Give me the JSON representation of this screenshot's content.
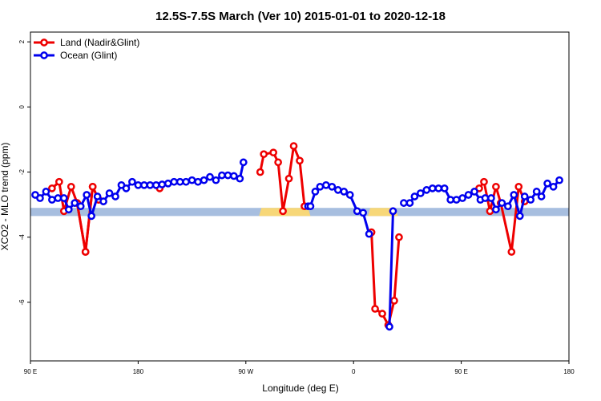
{
  "chart_data": {
    "type": "line",
    "title": "12.5S-7.5S March (Ver 10)   2015-01-01 to 2020-12-18",
    "xlabel": "Longitude (deg E)",
    "ylabel": "XCO2 - MLO trend (ppm)",
    "xlim": [
      90,
      540
    ],
    "ylim": [
      -7.8,
      2.3
    ],
    "x_ticks": [
      {
        "value": 90,
        "label": "90 E"
      },
      {
        "value": 180,
        "label": "180"
      },
      {
        "value": 270,
        "label": "90 W"
      },
      {
        "value": 360,
        "label": "0"
      },
      {
        "value": 450,
        "label": "90 E"
      },
      {
        "value": 540,
        "label": "180"
      }
    ],
    "y_ticks": [
      {
        "value": 2,
        "label": "2"
      },
      {
        "value": 0,
        "label": "0"
      },
      {
        "value": -2,
        "label": "-2"
      },
      {
        "value": -4,
        "label": "-4"
      },
      {
        "value": -6,
        "label": "-6"
      }
    ],
    "legend": {
      "position": "top-left",
      "entries": [
        {
          "label": "Land (Nadir&Glint)",
          "color": "#ee0000"
        },
        {
          "label": "Ocean (Glint)",
          "color": "#0000ee"
        }
      ]
    },
    "series": [
      {
        "name": "Land (Nadir&Glint)",
        "color": "#ee0000",
        "segments": [
          [
            [
              108,
              -2.5
            ],
            [
              114,
              -2.3
            ],
            [
              118,
              -3.2
            ],
            [
              124,
              -2.45
            ],
            [
              129,
              -2.95
            ],
            [
              136,
              -4.45
            ],
            [
              142,
              -2.45
            ],
            [
              147,
              -2.85
            ]
          ],
          [
            [
              129,
              -2.95
            ],
            [
              136,
              -4.45
            ],
            [
              142,
              -2.45
            ],
            [
              147,
              -2.85
            ]
          ],
          [
            [
              198,
              -2.5
            ]
          ],
          [
            [
              282,
              -2.0
            ],
            [
              285,
              -1.45
            ],
            [
              293,
              -1.4
            ],
            [
              297,
              -1.7
            ],
            [
              301,
              -3.2
            ],
            [
              306,
              -2.2
            ],
            [
              310,
              -1.2
            ],
            [
              315,
              -1.65
            ],
            [
              319,
              -3.05
            ]
          ],
          [
            [
              375,
              -3.85
            ],
            [
              378,
              -6.2
            ],
            [
              384,
              -6.35
            ],
            [
              389,
              -6.7
            ],
            [
              394,
              -5.95
            ],
            [
              398,
              -4.0
            ]
          ],
          [
            [
              465,
              -2.5
            ],
            [
              469,
              -2.3
            ],
            [
              474,
              -3.2
            ],
            [
              479,
              -2.45
            ],
            [
              483,
              -2.95
            ],
            [
              492,
              -4.45
            ],
            [
              498,
              -2.45
            ],
            [
              503,
              -2.9
            ]
          ]
        ]
      },
      {
        "name": "Ocean (Glint)",
        "color": "#0000ee",
        "segments": [
          [
            [
              94,
              -2.7
            ],
            [
              98,
              -2.8
            ],
            [
              103,
              -2.6
            ],
            [
              108,
              -2.85
            ],
            [
              113,
              -2.8
            ],
            [
              118,
              -2.8
            ],
            [
              122,
              -3.15
            ],
            [
              127,
              -2.95
            ],
            [
              132,
              -3.05
            ],
            [
              137,
              -2.7
            ],
            [
              141,
              -3.35
            ],
            [
              146,
              -2.75
            ],
            [
              151,
              -2.9
            ],
            [
              156,
              -2.65
            ],
            [
              161,
              -2.75
            ],
            [
              166,
              -2.4
            ],
            [
              170,
              -2.5
            ],
            [
              175,
              -2.3
            ],
            [
              180,
              -2.4
            ],
            [
              185,
              -2.4
            ],
            [
              190,
              -2.4
            ],
            [
              195,
              -2.4
            ],
            [
              200,
              -2.38
            ],
            [
              205,
              -2.35
            ],
            [
              210,
              -2.3
            ],
            [
              215,
              -2.3
            ],
            [
              220,
              -2.3
            ],
            [
              225,
              -2.25
            ],
            [
              230,
              -2.3
            ],
            [
              235,
              -2.25
            ],
            [
              240,
              -2.15
            ],
            [
              245,
              -2.25
            ],
            [
              250,
              -2.1
            ],
            [
              255,
              -2.1
            ],
            [
              260,
              -2.12
            ],
            [
              265,
              -2.2
            ],
            [
              268,
              -1.7
            ]
          ],
          [
            [
              322,
              -3.05
            ],
            [
              324,
              -3.05
            ],
            [
              328,
              -2.6
            ],
            [
              332,
              -2.45
            ],
            [
              337,
              -2.4
            ],
            [
              342,
              -2.45
            ],
            [
              347,
              -2.55
            ],
            [
              352,
              -2.6
            ],
            [
              357,
              -2.7
            ],
            [
              363,
              -3.2
            ],
            [
              368,
              -3.25
            ],
            [
              373,
              -3.9
            ]
          ],
          [
            [
              390,
              -6.75
            ],
            [
              393,
              -3.2
            ]
          ],
          [
            [
              402,
              -2.95
            ],
            [
              407,
              -2.95
            ],
            [
              411,
              -2.75
            ],
            [
              416,
              -2.65
            ],
            [
              421,
              -2.55
            ],
            [
              426,
              -2.5
            ],
            [
              431,
              -2.5
            ],
            [
              436,
              -2.5
            ],
            [
              441,
              -2.85
            ],
            [
              446,
              -2.85
            ],
            [
              451,
              -2.8
            ],
            [
              456,
              -2.7
            ],
            [
              461,
              -2.6
            ],
            [
              466,
              -2.85
            ],
            [
              470,
              -2.8
            ],
            [
              475,
              -2.8
            ],
            [
              479,
              -3.15
            ],
            [
              484,
              -2.95
            ],
            [
              489,
              -3.05
            ],
            [
              494,
              -2.7
            ],
            [
              499,
              -3.35
            ],
            [
              503,
              -2.75
            ],
            [
              508,
              -2.85
            ],
            [
              513,
              -2.6
            ],
            [
              517,
              -2.75
            ],
            [
              522,
              -2.35
            ],
            [
              527,
              -2.45
            ],
            [
              532,
              -2.25
            ]
          ]
        ]
      }
    ],
    "land_band": {
      "y_range": [
        -3.35,
        -3.1
      ],
      "ocean_color": "#a7bedf",
      "land_color": "#f7d778",
      "land_x_ranges": [
        [
          283,
          298
        ],
        [
          296,
          322
        ],
        [
          374,
          395
        ]
      ]
    }
  }
}
